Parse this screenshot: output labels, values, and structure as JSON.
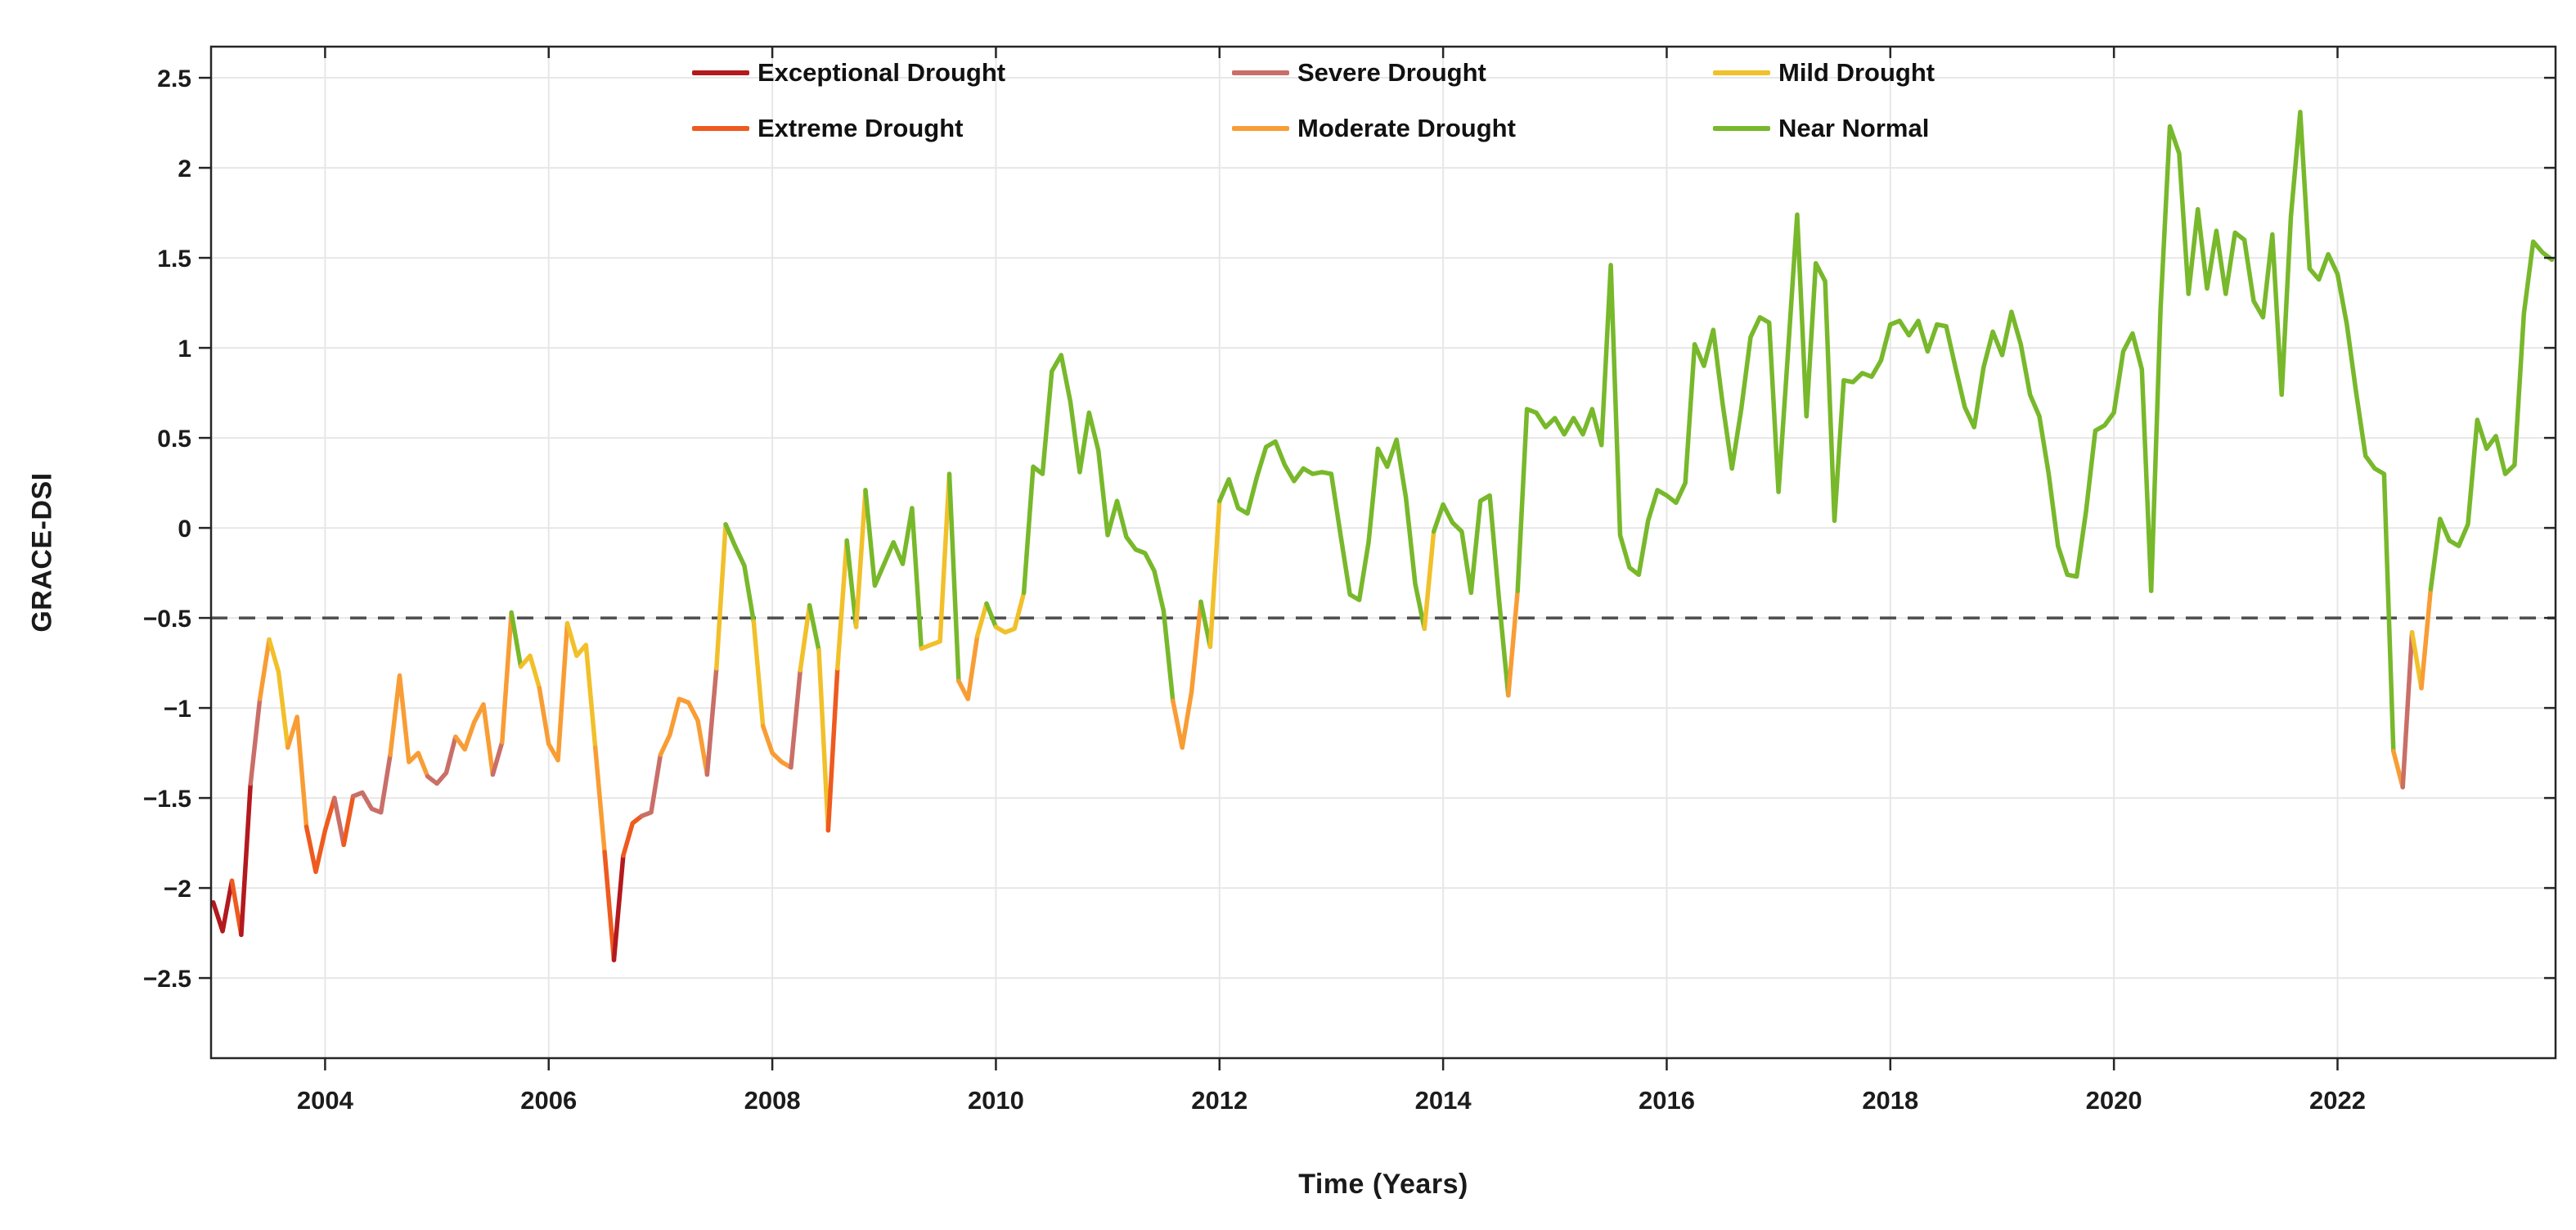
{
  "chart_data": {
    "type": "line",
    "title": "",
    "xlabel": "Time (Years)",
    "ylabel": "GRACE-DSI",
    "grid": true,
    "xlim": [
      2002.98,
      2023.95
    ],
    "ylim": [
      -2.945,
      2.673
    ],
    "x_ticks": [
      2004,
      2006,
      2008,
      2010,
      2012,
      2014,
      2016,
      2018,
      2020,
      2022
    ],
    "x_tick_labels": [
      "2004",
      "2006",
      "2008",
      "2010",
      "2012",
      "2014",
      "2016",
      "2018",
      "2020",
      "2022"
    ],
    "y_ticks": [
      2.5,
      2,
      1.5,
      1,
      0.5,
      0,
      -0.5,
      -1,
      -1.5,
      -2,
      -2.5
    ],
    "y_tick_labels": [
      "2.5",
      "2",
      "1.5",
      "1",
      "0.5",
      "0",
      "−0.5",
      "−1",
      "−1.5",
      "−2",
      "−2.5"
    ],
    "threshold_line": {
      "y": -0.5,
      "style": "dashed",
      "color": "#4d4d4d"
    },
    "legend_position": "top-center, 2 rows x 3 columns, no frame",
    "categories": [
      {
        "key": "near_normal",
        "label": "Near Normal",
        "min": -0.5,
        "color": "#78B82B",
        "legend_row": 1,
        "legend_col": 2
      },
      {
        "key": "mild",
        "label": "Mild Drought",
        "min": -0.8,
        "color": "#F1C02A",
        "legend_row": 0,
        "legend_col": 2
      },
      {
        "key": "moderate",
        "label": "Moderate Drought",
        "min": -1.3,
        "color": "#F89D35",
        "legend_row": 1,
        "legend_col": 1
      },
      {
        "key": "severe",
        "label": "Severe Drought",
        "min": -1.6,
        "color": "#C96F68",
        "legend_row": 0,
        "legend_col": 1
      },
      {
        "key": "extreme",
        "label": "Extreme Drought",
        "min": -2.0,
        "color": "#EF5A1E",
        "legend_row": 1,
        "legend_col": 0
      },
      {
        "key": "exceptional",
        "label": "Exceptional Drought",
        "min": -99,
        "color": "#B3191E",
        "legend_row": 0,
        "legend_col": 0
      }
    ],
    "series": [
      {
        "name": "GRACE-DSI (monthly)",
        "coloring": "segment colored by drought category of left data point",
        "x_start": 2003.0,
        "x_step": 0.0833,
        "values": [
          -2.08,
          -2.24,
          -1.96,
          -2.26,
          -1.42,
          -0.95,
          -0.62,
          -0.8,
          -1.22,
          -1.05,
          -1.66,
          -1.91,
          -1.68,
          -1.5,
          -1.76,
          -1.49,
          -1.47,
          -1.56,
          -1.58,
          -1.26,
          -0.82,
          -1.3,
          -1.25,
          -1.38,
          -1.42,
          -1.36,
          -1.16,
          -1.23,
          -1.08,
          -0.98,
          -1.37,
          -1.19,
          -0.47,
          -0.77,
          -0.71,
          -0.89,
          -1.2,
          -1.29,
          -0.53,
          -0.71,
          -0.65,
          -1.22,
          -1.8,
          -2.4,
          -1.82,
          -1.64,
          -1.6,
          -1.58,
          -1.26,
          -1.15,
          -0.95,
          -0.97,
          -1.07,
          -1.37,
          -0.78,
          0.02,
          -0.1,
          -0.21,
          -0.52,
          -1.1,
          -1.25,
          -1.3,
          -1.33,
          -0.79,
          -0.43,
          -0.68,
          -1.68,
          -0.78,
          -0.07,
          -0.55,
          0.21,
          -0.32,
          -0.2,
          -0.08,
          -0.2,
          0.11,
          -0.67,
          -0.65,
          -0.63,
          0.3,
          -0.85,
          -0.95,
          -0.6,
          -0.42,
          -0.55,
          -0.58,
          -0.56,
          -0.36,
          0.34,
          0.3,
          0.87,
          0.96,
          0.7,
          0.31,
          0.64,
          0.43,
          -0.04,
          0.15,
          -0.05,
          -0.12,
          -0.14,
          -0.24,
          -0.46,
          -0.96,
          -1.22,
          -0.91,
          -0.41,
          -0.66,
          0.15,
          0.27,
          0.11,
          0.08,
          0.28,
          0.45,
          0.48,
          0.35,
          0.26,
          0.33,
          0.3,
          0.31,
          0.3,
          -0.04,
          -0.37,
          -0.4,
          -0.08,
          0.44,
          0.34,
          0.49,
          0.17,
          -0.31,
          -0.56,
          -0.02,
          0.13,
          0.03,
          -0.02,
          -0.36,
          0.15,
          0.18,
          -0.4,
          -0.93,
          -0.35,
          0.66,
          0.64,
          0.56,
          0.61,
          0.52,
          0.61,
          0.52,
          0.66,
          0.46,
          1.46,
          -0.04,
          -0.22,
          -0.26,
          0.04,
          0.21,
          0.18,
          0.14,
          0.25,
          1.02,
          0.9,
          1.1,
          0.69,
          0.33,
          0.66,
          1.06,
          1.17,
          1.14,
          0.2,
          0.96,
          1.74,
          0.62,
          1.47,
          1.37,
          0.04,
          0.82,
          0.81,
          0.86,
          0.84,
          0.93,
          1.13,
          1.15,
          1.07,
          1.15,
          0.98,
          1.13,
          1.12,
          0.89,
          0.67,
          0.56,
          0.89,
          1.09,
          0.96,
          1.2,
          1.02,
          0.74,
          0.62,
          0.3,
          -0.1,
          -0.26,
          -0.27,
          0.09,
          0.54,
          0.57,
          0.64,
          0.98,
          1.08,
          0.88,
          -0.35,
          1.21,
          2.23,
          2.08,
          1.3,
          1.77,
          1.33,
          1.65,
          1.3,
          1.64,
          1.6,
          1.26,
          1.17,
          1.63,
          0.74,
          1.73,
          2.31,
          1.44,
          1.38,
          1.52,
          1.41,
          1.13,
          0.75,
          0.4,
          0.33,
          0.3,
          -1.24,
          -1.44,
          -0.58,
          -0.89,
          -0.34,
          0.05,
          -0.07,
          -0.1,
          0.02,
          0.6,
          0.44,
          0.51,
          0.3,
          0.35,
          1.19,
          1.59,
          1.53,
          1.49
        ]
      }
    ]
  }
}
